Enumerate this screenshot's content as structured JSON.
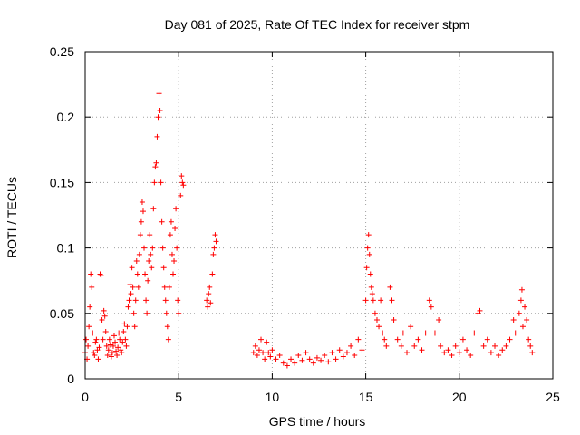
{
  "chart_data": {
    "type": "scatter",
    "title": "Day 081 of 2025, Rate Of TEC Index for receiver stpm",
    "xlabel": "GPS time / hours",
    "ylabel": "ROTI / TECUs",
    "xlim": [
      0,
      25
    ],
    "ylim": [
      0,
      0.25
    ],
    "xticks": [
      "0",
      "5",
      "10",
      "15",
      "20",
      "25"
    ],
    "yticks": [
      "0",
      "0.05",
      "0.1",
      "0.15",
      "0.2",
      "0.25"
    ],
    "grid": true,
    "marker": "plus",
    "color": "#ff0000",
    "series": [
      {
        "points": [
          [
            0.0,
            0.02
          ],
          [
            0.05,
            0.03
          ],
          [
            0.1,
            0.015
          ],
          [
            0.15,
            0.025
          ],
          [
            0.2,
            0.04
          ],
          [
            0.25,
            0.055
          ],
          [
            0.3,
            0.08
          ],
          [
            0.35,
            0.07
          ],
          [
            0.4,
            0.035
          ],
          [
            0.45,
            0.02
          ],
          [
            0.5,
            0.018
          ],
          [
            0.55,
            0.028
          ],
          [
            0.6,
            0.03
          ],
          [
            0.65,
            0.022
          ],
          [
            0.7,
            0.015
          ],
          [
            0.75,
            0.024
          ],
          [
            0.8,
            0.08
          ],
          [
            0.85,
            0.079
          ],
          [
            0.9,
            0.045
          ],
          [
            0.95,
            0.03
          ],
          [
            1.0,
            0.052
          ],
          [
            1.05,
            0.048
          ],
          [
            1.1,
            0.036
          ],
          [
            1.15,
            0.025
          ],
          [
            1.2,
            0.018
          ],
          [
            1.25,
            0.022
          ],
          [
            1.3,
            0.03
          ],
          [
            1.35,
            0.026
          ],
          [
            1.4,
            0.017
          ],
          [
            1.45,
            0.02
          ],
          [
            1.5,
            0.025
          ],
          [
            1.55,
            0.033
          ],
          [
            1.6,
            0.028
          ],
          [
            1.65,
            0.021
          ],
          [
            1.7,
            0.018
          ],
          [
            1.75,
            0.024
          ],
          [
            1.8,
            0.035
          ],
          [
            1.85,
            0.03
          ],
          [
            1.9,
            0.022
          ],
          [
            1.95,
            0.02
          ],
          [
            2.0,
            0.028
          ],
          [
            2.05,
            0.036
          ],
          [
            2.1,
            0.042
          ],
          [
            2.15,
            0.03
          ],
          [
            2.2,
            0.025
          ],
          [
            2.25,
            0.04
          ],
          [
            2.3,
            0.055
          ],
          [
            2.35,
            0.06
          ],
          [
            2.4,
            0.072
          ],
          [
            2.45,
            0.065
          ],
          [
            2.5,
            0.085
          ],
          [
            2.55,
            0.07
          ],
          [
            2.6,
            0.05
          ],
          [
            2.65,
            0.04
          ],
          [
            2.7,
            0.06
          ],
          [
            2.75,
            0.09
          ],
          [
            2.8,
            0.08
          ],
          [
            2.85,
            0.07
          ],
          [
            2.9,
            0.095
          ],
          [
            2.95,
            0.11
          ],
          [
            3.0,
            0.12
          ],
          [
            3.05,
            0.135
          ],
          [
            3.1,
            0.128
          ],
          [
            3.15,
            0.1
          ],
          [
            3.2,
            0.08
          ],
          [
            3.25,
            0.06
          ],
          [
            3.3,
            0.05
          ],
          [
            3.35,
            0.075
          ],
          [
            3.4,
            0.09
          ],
          [
            3.45,
            0.11
          ],
          [
            3.5,
            0.095
          ],
          [
            3.55,
            0.085
          ],
          [
            3.6,
            0.1
          ],
          [
            3.65,
            0.13
          ],
          [
            3.7,
            0.15
          ],
          [
            3.75,
            0.162
          ],
          [
            3.8,
            0.165
          ],
          [
            3.85,
            0.185
          ],
          [
            3.9,
            0.2
          ],
          [
            3.95,
            0.218
          ],
          [
            4.0,
            0.205
          ],
          [
            4.05,
            0.15
          ],
          [
            4.1,
            0.12
          ],
          [
            4.15,
            0.1
          ],
          [
            4.2,
            0.085
          ],
          [
            4.25,
            0.07
          ],
          [
            4.3,
            0.06
          ],
          [
            4.35,
            0.05
          ],
          [
            4.4,
            0.04
          ],
          [
            4.45,
            0.03
          ],
          [
            4.5,
            0.07
          ],
          [
            4.55,
            0.11
          ],
          [
            4.6,
            0.12
          ],
          [
            4.65,
            0.095
          ],
          [
            4.7,
            0.08
          ],
          [
            4.75,
            0.09
          ],
          [
            4.8,
            0.115
          ],
          [
            4.85,
            0.13
          ],
          [
            4.9,
            0.1
          ],
          [
            4.95,
            0.06
          ],
          [
            5.0,
            0.05
          ],
          [
            5.1,
            0.14
          ],
          [
            5.15,
            0.155
          ],
          [
            5.2,
            0.15
          ],
          [
            5.25,
            0.148
          ],
          [
            6.5,
            0.06
          ],
          [
            6.55,
            0.055
          ],
          [
            6.6,
            0.065
          ],
          [
            6.65,
            0.07
          ],
          [
            6.7,
            0.058
          ],
          [
            6.8,
            0.08
          ],
          [
            6.85,
            0.095
          ],
          [
            6.9,
            0.1
          ],
          [
            6.95,
            0.11
          ],
          [
            7.0,
            0.105
          ],
          [
            9.0,
            0.02
          ],
          [
            9.1,
            0.025
          ],
          [
            9.2,
            0.018
          ],
          [
            9.3,
            0.022
          ],
          [
            9.4,
            0.03
          ],
          [
            9.5,
            0.02
          ],
          [
            9.6,
            0.015
          ],
          [
            9.7,
            0.028
          ],
          [
            9.8,
            0.02
          ],
          [
            9.9,
            0.017
          ],
          [
            10.0,
            0.022
          ],
          [
            10.2,
            0.015
          ],
          [
            10.4,
            0.018
          ],
          [
            10.6,
            0.012
          ],
          [
            10.8,
            0.01
          ],
          [
            11.0,
            0.015
          ],
          [
            11.2,
            0.012
          ],
          [
            11.4,
            0.018
          ],
          [
            11.6,
            0.014
          ],
          [
            11.8,
            0.02
          ],
          [
            12.0,
            0.015
          ],
          [
            12.2,
            0.012
          ],
          [
            12.4,
            0.016
          ],
          [
            12.6,
            0.014
          ],
          [
            12.8,
            0.018
          ],
          [
            13.0,
            0.013
          ],
          [
            13.2,
            0.02
          ],
          [
            13.4,
            0.015
          ],
          [
            13.6,
            0.022
          ],
          [
            13.8,
            0.017
          ],
          [
            14.0,
            0.02
          ],
          [
            14.2,
            0.025
          ],
          [
            14.4,
            0.018
          ],
          [
            14.6,
            0.03
          ],
          [
            14.8,
            0.022
          ],
          [
            15.0,
            0.06
          ],
          [
            15.05,
            0.085
          ],
          [
            15.1,
            0.1
          ],
          [
            15.15,
            0.11
          ],
          [
            15.2,
            0.095
          ],
          [
            15.25,
            0.08
          ],
          [
            15.3,
            0.07
          ],
          [
            15.35,
            0.065
          ],
          [
            15.4,
            0.06
          ],
          [
            15.5,
            0.05
          ],
          [
            15.6,
            0.045
          ],
          [
            15.7,
            0.04
          ],
          [
            15.8,
            0.06
          ],
          [
            15.9,
            0.035
          ],
          [
            16.0,
            0.03
          ],
          [
            16.1,
            0.025
          ],
          [
            16.3,
            0.07
          ],
          [
            16.4,
            0.06
          ],
          [
            16.5,
            0.045
          ],
          [
            16.7,
            0.03
          ],
          [
            16.9,
            0.025
          ],
          [
            17.0,
            0.035
          ],
          [
            17.2,
            0.02
          ],
          [
            17.4,
            0.04
          ],
          [
            17.6,
            0.025
          ],
          [
            17.8,
            0.03
          ],
          [
            18.0,
            0.022
          ],
          [
            18.2,
            0.035
          ],
          [
            18.4,
            0.06
          ],
          [
            18.5,
            0.055
          ],
          [
            18.7,
            0.035
          ],
          [
            18.9,
            0.045
          ],
          [
            19.0,
            0.025
          ],
          [
            19.2,
            0.02
          ],
          [
            19.4,
            0.022
          ],
          [
            19.6,
            0.018
          ],
          [
            19.8,
            0.025
          ],
          [
            20.0,
            0.02
          ],
          [
            20.2,
            0.03
          ],
          [
            20.4,
            0.022
          ],
          [
            20.6,
            0.018
          ],
          [
            20.8,
            0.035
          ],
          [
            21.0,
            0.05
          ],
          [
            21.1,
            0.052
          ],
          [
            21.3,
            0.025
          ],
          [
            21.5,
            0.03
          ],
          [
            21.7,
            0.02
          ],
          [
            21.9,
            0.025
          ],
          [
            22.1,
            0.018
          ],
          [
            22.3,
            0.022
          ],
          [
            22.5,
            0.025
          ],
          [
            22.7,
            0.03
          ],
          [
            22.9,
            0.045
          ],
          [
            23.0,
            0.035
          ],
          [
            23.2,
            0.05
          ],
          [
            23.3,
            0.06
          ],
          [
            23.35,
            0.068
          ],
          [
            23.4,
            0.04
          ],
          [
            23.5,
            0.055
          ],
          [
            23.6,
            0.045
          ],
          [
            23.7,
            0.03
          ],
          [
            23.8,
            0.025
          ],
          [
            23.9,
            0.02
          ]
        ]
      }
    ]
  }
}
